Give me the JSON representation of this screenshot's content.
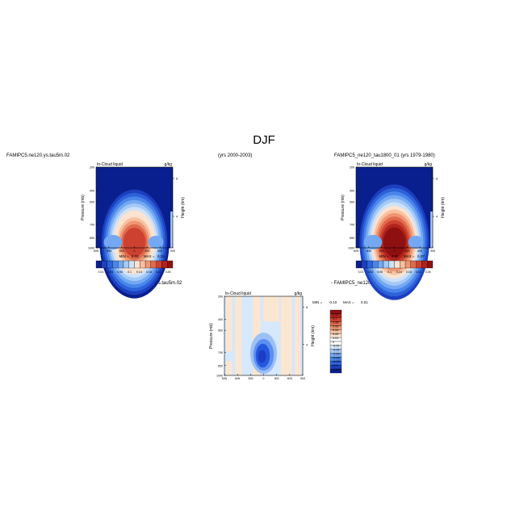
{
  "title": "DJF",
  "top_left_caption": "FAMIPC5.ne120.ys.tau5m.02",
  "years_caption": "(yrs 2000-2003)",
  "top_right_caption": "FAMIPC5_ne120_tau1800_01 (yrs 1979-1980)",
  "diff_caption_left": "FAMIPC5.ne120.ys.tau5m.02",
  "diff_caption_right": "- FAMIPC5_ne120_tau1800_01",
  "colors": {
    "blue_scale": [
      "#0a1f8e",
      "#1d3fbf",
      "#2d62d9",
      "#4a86ea",
      "#74a8f2",
      "#a3c9f7",
      "#cde2fb"
    ],
    "warm_scale": [
      "#fbe3cf",
      "#f7c1a0",
      "#ef9673",
      "#e06a4c",
      "#cc4130",
      "#b2231c",
      "#8f1010"
    ],
    "diff_light_blue": "#d6e8fb",
    "diff_peach": "#fbe6d2",
    "diff_blue": "#2457dd"
  },
  "chart_data": [
    {
      "type": "heatmap",
      "panel": "top-left",
      "title": "In-Cloud liquid",
      "units": "g/kg",
      "ylabel": "Pressure (mb)",
      "y2label": "Height (km)",
      "x_ticks": [
        "60N",
        "60N",
        "30N",
        "0",
        "30S",
        "60S",
        "90S"
      ],
      "y_ticks": [
        "200",
        "400",
        "500",
        "700",
        "850",
        "1000"
      ],
      "y2_ticks": [
        "8",
        "4"
      ],
      "ylim": [
        200,
        1000
      ],
      "min_label": "MIN =",
      "min_value": "0.00",
      "max_label": "MAX =",
      "max_value": "0.22",
      "max": 0.22,
      "colorbar_labels": [
        "0.01",
        "0.03",
        "0.05",
        "0.1",
        "0.14",
        "0.18",
        "0.22",
        "0.26"
      ]
    },
    {
      "type": "heatmap",
      "panel": "top-right",
      "title": "In-Cloud liquid",
      "units": "g/kg",
      "ylabel": "Pressure (mb)",
      "y2label": "Height (km)",
      "x_ticks": [
        "60N",
        "60N",
        "30N",
        "0",
        "30S",
        "60S",
        "90S"
      ],
      "y_ticks": [
        "200",
        "400",
        "500",
        "700",
        "850",
        "1000"
      ],
      "y2_ticks": [
        "8",
        "4"
      ],
      "ylim": [
        200,
        1000
      ],
      "min_label": "MIN =",
      "min_value": "0.00",
      "max_label": "MAX =",
      "max_value": "0.27",
      "max": 0.27,
      "colorbar_labels": [
        "0.01",
        "0.03",
        "0.05",
        "0.1",
        "0.14",
        "0.18",
        "0.22",
        "0.26"
      ]
    },
    {
      "type": "heatmap",
      "panel": "bottom-diff",
      "title": "In-Cloud liquid",
      "units": "g/kg",
      "ylabel": "Pressure (mb)",
      "y2label": "Height (km)",
      "x_ticks": [
        "60N",
        "60N",
        "30N",
        "0",
        "30S",
        "60S",
        "90S"
      ],
      "y_ticks": [
        "200",
        "400",
        "500",
        "700",
        "850",
        "1000"
      ],
      "y2_ticks": [
        "8",
        "4"
      ],
      "ylim": [
        200,
        1000
      ],
      "min_label": "MIN =",
      "min_value": "-0.10",
      "max_label": "MAX =",
      "max_value": "0.01",
      "colorbar_labels": [
        "0.12",
        "0.1",
        "0.08",
        "0.06",
        "0.04",
        "0.02",
        "0.01",
        "0",
        "-0.01",
        "-0.02",
        "-0.04",
        "-0.06",
        "-0.08",
        "-0.1",
        "-0.12"
      ]
    }
  ]
}
